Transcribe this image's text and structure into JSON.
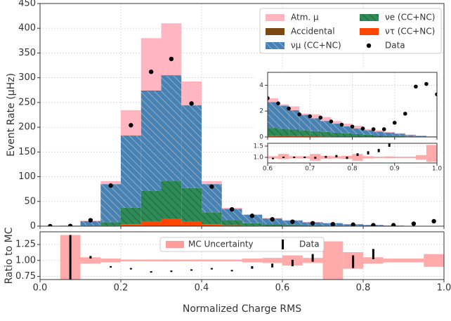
{
  "chart_data": [
    {
      "type": "histogram",
      "ylabel": "Event Rate (μHz)",
      "xlim": [
        0,
        1
      ],
      "ylim": [
        0,
        450
      ],
      "yticks": [
        0,
        50,
        100,
        150,
        200,
        250,
        300,
        350,
        400,
        450
      ],
      "grid": true,
      "bins": [
        0,
        0.05,
        0.1,
        0.15,
        0.2,
        0.25,
        0.3,
        0.35,
        0.4,
        0.45,
        0.5,
        0.55,
        0.6,
        0.65,
        0.7,
        0.75,
        0.8,
        0.85,
        0.9,
        0.95,
        1.0
      ],
      "series": [
        {
          "name": "ντ (CC+NC)",
          "color": "#ff4500",
          "values": [
            0,
            0,
            0.2,
            1,
            4,
            10,
            15,
            10,
            4,
            2,
            1,
            0.5,
            0.3,
            0.2,
            0.1,
            0.1,
            0,
            0,
            0,
            0
          ]
        },
        {
          "name": "νe (CC+NC)",
          "color": "#2e8b57",
          "hatch": "#1d5a36",
          "values": [
            0,
            0.2,
            1,
            7,
            33,
            61,
            77,
            67,
            24,
            10,
            5,
            3,
            2,
            1.5,
            1,
            0.8,
            0.5,
            0.3,
            0.1,
            0.05
          ]
        },
        {
          "name": "νμ (CC+NC)",
          "color": "#4682b4",
          "hatch": "#a9b7c9",
          "values": [
            0,
            0.8,
            9,
            77,
            146,
            202,
            212,
            167,
            57,
            23,
            17,
            12,
            9,
            6,
            5,
            3,
            2,
            1,
            0.5,
            0.2
          ]
        },
        {
          "name": "Accidental",
          "color": "#7a4a12",
          "values": [
            0,
            0,
            0,
            0,
            0.5,
            1,
            1,
            0.5,
            0,
            0,
            0,
            0,
            0,
            0,
            0,
            0,
            0,
            0,
            0,
            0
          ]
        },
        {
          "name": "Atm. μ",
          "color": "#ffb6c1",
          "values": [
            0,
            0.2,
            1,
            6,
            51,
            106,
            105,
            48,
            6,
            2,
            1,
            1,
            1,
            1,
            0.5,
            0.5,
            0.3,
            0.2,
            0.1,
            0.05
          ]
        }
      ],
      "data": {
        "name": "Data",
        "color": "#000000",
        "x": [
          0.025,
          0.075,
          0.125,
          0.175,
          0.225,
          0.275,
          0.325,
          0.375,
          0.425,
          0.475,
          0.525,
          0.575,
          0.625,
          0.675,
          0.725,
          0.775,
          0.825,
          0.875,
          0.925,
          0.975
        ],
        "values": [
          0,
          0.5,
          12,
          82,
          204,
          312,
          338,
          248,
          80,
          34,
          21,
          14,
          9,
          6,
          4,
          3,
          2,
          2,
          5,
          10
        ]
      }
    },
    {
      "type": "ratio",
      "xlabel": "Normalized Charge RMS",
      "ylabel": "Ratio to MC",
      "xlim": [
        0,
        1
      ],
      "ylim": [
        0.7,
        1.45
      ],
      "yticks": [
        {
          "value": 0.75,
          "label": "0.75"
        },
        {
          "value": 1.0,
          "label": "1.00"
        },
        {
          "value": 1.25,
          "label": "1.25"
        }
      ],
      "xticks": [
        {
          "value": 0,
          "label": "0.0"
        },
        0.2,
        0.4,
        0.6,
        0.8,
        {
          "value": 1,
          "label": "1.0"
        }
      ],
      "grid": true,
      "bins": [
        0,
        0.05,
        0.1,
        0.15,
        0.2,
        0.25,
        0.3,
        0.35,
        0.4,
        0.45,
        0.5,
        0.55,
        0.6,
        0.65,
        0.7,
        0.75,
        0.8,
        0.85,
        0.9,
        0.95,
        1.0
      ],
      "uncertainty": {
        "name": "MC Uncertainty",
        "color": "#ff9c9c",
        "lower": [
          null,
          0.6,
          0.95,
          0.97,
          0.985,
          0.985,
          0.985,
          0.985,
          0.985,
          0.985,
          0.97,
          0.96,
          0.92,
          0.96,
          0.7,
          0.87,
          0.95,
          0.97,
          0.97,
          0.9
        ],
        "upper": [
          null,
          1.4,
          1.05,
          1.03,
          1.015,
          1.015,
          1.015,
          1.015,
          1.015,
          1.015,
          1.03,
          1.04,
          1.08,
          1.04,
          1.3,
          1.13,
          1.05,
          1.03,
          1.03,
          1.1
        ]
      },
      "data": {
        "name": "Data",
        "color": "#000000",
        "values": [
          null,
          1.0,
          1.05,
          0.9,
          0.87,
          0.82,
          0.83,
          0.85,
          0.87,
          0.84,
          0.89,
          0.92,
          0.96,
          1.04,
          null,
          0.98,
          1.1,
          null,
          null,
          null
        ],
        "errors": [
          null,
          0.4,
          0.02,
          0.01,
          0.01,
          0.01,
          0.01,
          0.01,
          0.01,
          0.01,
          0.02,
          0.03,
          0.05,
          0.06,
          null,
          0.1,
          0.08,
          null,
          null,
          null
        ]
      }
    },
    {
      "type": "histogram",
      "xlim": [
        0.6,
        1.0
      ],
      "ylim": [
        0,
        5
      ],
      "yticks": [
        0,
        2,
        4
      ],
      "grid": true,
      "bins": [
        0.6,
        0.625,
        0.65,
        0.675,
        0.7,
        0.725,
        0.75,
        0.775,
        0.8,
        0.825,
        0.85,
        0.875,
        0.9,
        0.925,
        0.95,
        0.975,
        1.0
      ],
      "series": [
        {
          "name": "ντ (CC+NC)",
          "color": "#ff4500",
          "values": [
            0.1,
            0.08,
            0.07,
            0.06,
            0.05,
            0.04,
            0.03,
            0.03,
            0.02,
            0.02,
            0.01,
            0.01,
            0.01,
            0,
            0,
            0
          ]
        },
        {
          "name": "νe (CC+NC)",
          "color": "#2e8b57",
          "hatch": "#1d5a36",
          "values": [
            0.6,
            0.55,
            0.5,
            0.45,
            0.4,
            0.35,
            0.3,
            0.25,
            0.2,
            0.15,
            0.1,
            0.08,
            0.06,
            0.04,
            0.02,
            0.01
          ]
        },
        {
          "name": "νμ (CC+NC)",
          "color": "#4682b4",
          "hatch": "#a9b7c9",
          "values": [
            2.0,
            1.8,
            1.5,
            1.2,
            1.0,
            0.85,
            0.7,
            0.55,
            0.45,
            0.35,
            0.3,
            0.25,
            0.18,
            0.1,
            0.06,
            0.03
          ]
        },
        {
          "name": "Atm. μ",
          "color": "#ffb6c1",
          "values": [
            0.3,
            0.1,
            0.3,
            0.1,
            0.3,
            0.3,
            0.2,
            0.2,
            0.2,
            0.1,
            0.1,
            0.05,
            0.05,
            0.05,
            0.02,
            0.01
          ]
        }
      ],
      "data": {
        "name": "Data",
        "color": "#000000",
        "x": [
          0.6,
          0.625,
          0.65,
          0.675,
          0.7,
          0.725,
          0.75,
          0.775,
          0.8,
          0.825,
          0.85,
          0.875,
          0.9,
          0.925,
          0.95,
          0.975,
          1.0
        ],
        "values": [
          3.0,
          2.6,
          2.2,
          1.75,
          1.6,
          1.5,
          1.2,
          0.95,
          0.8,
          0.65,
          0.6,
          0.6,
          1.1,
          1.8,
          3.9,
          4.1,
          3.3
        ]
      }
    },
    {
      "type": "ratio",
      "xlim": [
        0.6,
        1.0
      ],
      "ylim": [
        0.75,
        1.625
      ],
      "yticks": [
        {
          "value": 1.0,
          "label": "1.0"
        },
        1.5
      ],
      "xticks": [
        0.6,
        0.7,
        0.8,
        0.9,
        {
          "value": 1.0,
          "label": "1.0"
        }
      ],
      "grid": true,
      "bins": [
        0.6,
        0.625,
        0.65,
        0.675,
        0.7,
        0.725,
        0.75,
        0.775,
        0.8,
        0.825,
        0.85,
        0.875,
        0.9,
        0.925,
        0.95,
        0.975,
        1.0
      ],
      "uncertainty": {
        "color": "#ff9c9c",
        "lower": [
          0.95,
          0.92,
          0.95,
          0.95,
          0.85,
          0.93,
          0.95,
          0.93,
          0.85,
          0.95,
          0.97,
          0.96,
          0.97,
          0.97,
          0.9,
          0.8
        ],
        "upper": [
          1.05,
          1.15,
          1.05,
          1.05,
          1.15,
          1.07,
          1.05,
          1.07,
          1.15,
          1.05,
          1.03,
          1.04,
          1.03,
          1.03,
          1.1,
          1.55
        ]
      },
      "data": {
        "color": "#000000",
        "values": [
          0.95,
          1.0,
          1.0,
          1.0,
          0.98,
          1.02,
          1.05,
          0.98,
          1.12,
          1.2,
          1.3,
          1.55,
          null,
          null,
          null,
          null
        ],
        "errors": [
          0.02,
          0.03,
          0.03,
          0.03,
          0.04,
          0.04,
          0.05,
          0.05,
          0.06,
          0.07,
          0.07,
          0.08,
          null,
          null,
          null,
          null
        ]
      }
    }
  ]
}
